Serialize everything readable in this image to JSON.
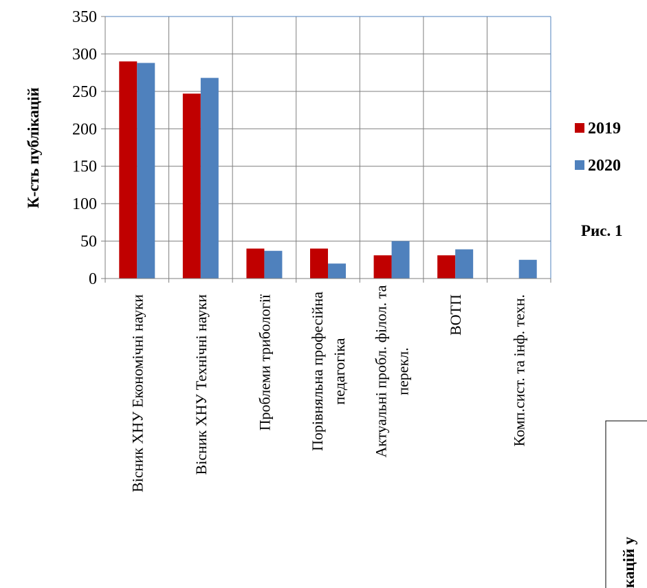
{
  "chart_data": {
    "type": "bar",
    "title": "",
    "ylabel": "К-сть публікацій",
    "xlabel": "",
    "ylim": [
      0,
      350
    ],
    "yticks": [
      0,
      50,
      100,
      150,
      200,
      250,
      300,
      350
    ],
    "grid": true,
    "legend_position": "right",
    "categories": [
      "Вісник ХНУ Економічні науки",
      "Вісник ХНУ Технічні науки",
      "Проблеми трибології",
      "Порівняльна професійна педагогіка",
      "Актуальні пробл. філол. та перекл.",
      "ВОТП",
      "Комп.сист. та інф. техн."
    ],
    "category_lines": [
      [
        "Вісник ХНУ Економічні науки"
      ],
      [
        "Вісник ХНУ Технічні науки"
      ],
      [
        "Проблеми трибології"
      ],
      [
        "Порівняльна професійна",
        "педагогіка"
      ],
      [
        "Актуальні пробл. філол. та",
        "перекл."
      ],
      [
        "ВОТП"
      ],
      [
        "Комп.сист. та інф. техн."
      ]
    ],
    "series": [
      {
        "name": "2019",
        "color": "#c00000",
        "values": [
          290,
          247,
          40,
          40,
          31,
          31,
          0
        ]
      },
      {
        "name": "2020",
        "color": "#4f81bd",
        "values": [
          288,
          268,
          37,
          20,
          50,
          39,
          25
        ]
      }
    ]
  },
  "caption_fragment": "Рис. 1",
  "rotated_fragment": "кацій у"
}
